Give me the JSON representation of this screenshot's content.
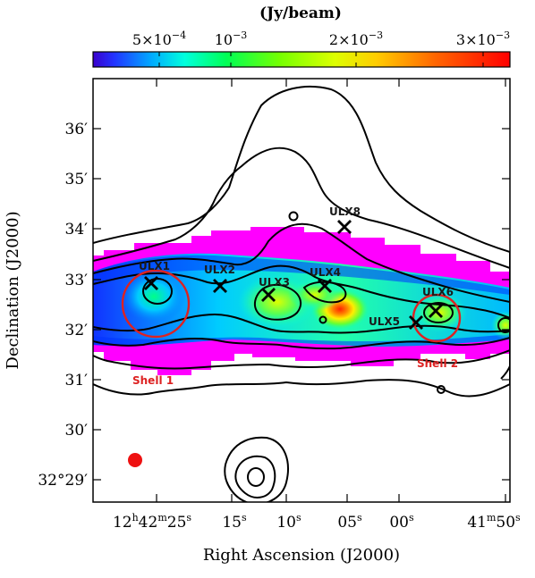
{
  "colorbar": {
    "unit_label": "(Jy/beam)",
    "ticks": [
      {
        "base": "5×10",
        "exp": "−4"
      },
      {
        "base": "10",
        "exp": "−3"
      },
      {
        "base": "2×10",
        "exp": "−3"
      },
      {
        "base": "3×10",
        "exp": "−3"
      }
    ]
  },
  "axes": {
    "xlabel": "Right Ascension (J2000)",
    "ylabel": "Declination (J2000)",
    "x_ticks": [
      {
        "h": "12",
        "m": "42",
        "s": "25"
      },
      {
        "s": "15"
      },
      {
        "s": "10"
      },
      {
        "s": "05"
      },
      {
        "s": "00"
      },
      {
        "m": "41",
        "s": "50"
      }
    ],
    "y_ticks": [
      "36′",
      "35′",
      "34′",
      "33′",
      "32′",
      "31′",
      "30′",
      "29′"
    ],
    "y_bottom_prefix": "32°"
  },
  "sources": {
    "ulx": [
      {
        "label": "ULX1"
      },
      {
        "label": "ULX2"
      },
      {
        "label": "ULX3"
      },
      {
        "label": "ULX4"
      },
      {
        "label": "ULX5"
      },
      {
        "label": "ULX6"
      },
      {
        "label": "ULX8"
      }
    ]
  },
  "shells": [
    {
      "label": "Shell 1",
      "color": "#dd2222"
    },
    {
      "label": "Shell 2",
      "color": "#dd2222"
    }
  ],
  "colors": {
    "contour": "#000000",
    "beam": "#ee1111",
    "colormap": [
      "#3300cc",
      "#0055ff",
      "#00ccff",
      "#00ff66",
      "#ccff00",
      "#ffcc00",
      "#ff5500",
      "#ff0000"
    ],
    "faint_emission": "#ff00ff"
  }
}
